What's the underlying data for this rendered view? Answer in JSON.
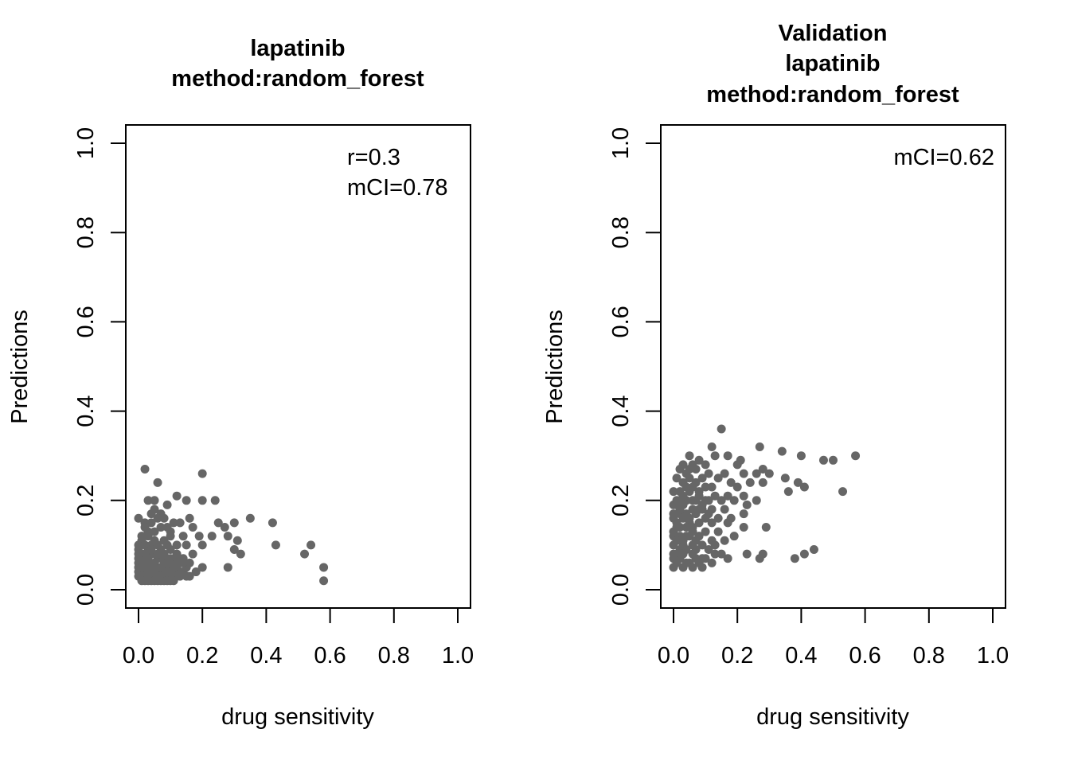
{
  "chart_data": [
    {
      "type": "scatter",
      "title": [
        "lapatinib",
        "method:random_forest"
      ],
      "xlabel": "drug sensitivity",
      "ylabel": "Predictions",
      "xlim": [
        0,
        1
      ],
      "ylim": [
        0,
        1
      ],
      "xticks": [
        "0.0",
        "0.2",
        "0.4",
        "0.6",
        "0.8",
        "1.0"
      ],
      "yticks": [
        "0.0",
        "0.2",
        "0.4",
        "0.6",
        "0.8",
        "1.0"
      ],
      "annotations": [
        "r=0.3",
        "mCI=0.78"
      ],
      "grid": false,
      "point_color": "#666666",
      "points": [
        [
          0.02,
          0.27
        ],
        [
          0.2,
          0.26
        ],
        [
          0.06,
          0.24
        ],
        [
          0.12,
          0.21
        ],
        [
          0.03,
          0.2
        ],
        [
          0.05,
          0.2
        ],
        [
          0.15,
          0.2
        ],
        [
          0.2,
          0.2
        ],
        [
          0.24,
          0.2
        ],
        [
          0.09,
          0.19
        ],
        [
          0.05,
          0.18
        ],
        [
          0.0,
          0.16
        ],
        [
          0.04,
          0.17
        ],
        [
          0.07,
          0.17
        ],
        [
          0.16,
          0.16
        ],
        [
          0.35,
          0.16
        ],
        [
          0.08,
          0.16
        ],
        [
          0.11,
          0.15
        ],
        [
          0.13,
          0.15
        ],
        [
          0.25,
          0.15
        ],
        [
          0.42,
          0.15
        ],
        [
          0.02,
          0.15
        ],
        [
          0.27,
          0.14
        ],
        [
          0.3,
          0.15
        ],
        [
          0.17,
          0.14
        ],
        [
          0.03,
          0.13
        ],
        [
          0.1,
          0.13
        ],
        [
          0.14,
          0.12
        ],
        [
          0.19,
          0.12
        ],
        [
          0.23,
          0.12
        ],
        [
          0.28,
          0.12
        ],
        [
          0.31,
          0.11
        ],
        [
          0.01,
          0.11
        ],
        [
          0.05,
          0.11
        ],
        [
          0.09,
          0.1
        ],
        [
          0.15,
          0.1
        ],
        [
          0.2,
          0.1
        ],
        [
          0.43,
          0.1
        ],
        [
          0.54,
          0.1
        ],
        [
          0.3,
          0.09
        ],
        [
          0.0,
          0.09
        ],
        [
          0.03,
          0.09
        ],
        [
          0.07,
          0.09
        ],
        [
          0.12,
          0.08
        ],
        [
          0.17,
          0.08
        ],
        [
          0.32,
          0.08
        ],
        [
          0.52,
          0.08
        ],
        [
          0.01,
          0.08
        ],
        [
          0.04,
          0.08
        ],
        [
          0.06,
          0.07
        ],
        [
          0.1,
          0.07
        ],
        [
          0.14,
          0.07
        ],
        [
          0.0,
          0.07
        ],
        [
          0.02,
          0.07
        ],
        [
          0.05,
          0.06
        ],
        [
          0.08,
          0.06
        ],
        [
          0.11,
          0.06
        ],
        [
          0.13,
          0.06
        ],
        [
          0.16,
          0.06
        ],
        [
          0.01,
          0.06
        ],
        [
          0.03,
          0.06
        ],
        [
          0.06,
          0.05
        ],
        [
          0.09,
          0.05
        ],
        [
          0.12,
          0.05
        ],
        [
          0.2,
          0.05
        ],
        [
          0.28,
          0.05
        ],
        [
          0.58,
          0.05
        ],
        [
          0.0,
          0.05
        ],
        [
          0.02,
          0.05
        ],
        [
          0.04,
          0.05
        ],
        [
          0.07,
          0.04
        ],
        [
          0.1,
          0.04
        ],
        [
          0.14,
          0.04
        ],
        [
          0.18,
          0.04
        ],
        [
          0.01,
          0.04
        ],
        [
          0.03,
          0.04
        ],
        [
          0.05,
          0.04
        ],
        [
          0.08,
          0.04
        ],
        [
          0.11,
          0.04
        ],
        [
          0.0,
          0.04
        ],
        [
          0.02,
          0.03
        ],
        [
          0.04,
          0.03
        ],
        [
          0.06,
          0.03
        ],
        [
          0.09,
          0.03
        ],
        [
          0.12,
          0.03
        ],
        [
          0.15,
          0.03
        ],
        [
          0.01,
          0.03
        ],
        [
          0.03,
          0.03
        ],
        [
          0.05,
          0.03
        ],
        [
          0.07,
          0.03
        ],
        [
          0.1,
          0.03
        ],
        [
          0.16,
          0.03
        ],
        [
          0.0,
          0.03
        ],
        [
          0.02,
          0.02
        ],
        [
          0.04,
          0.02
        ],
        [
          0.06,
          0.02
        ],
        [
          0.08,
          0.02
        ],
        [
          0.11,
          0.02
        ],
        [
          0.58,
          0.02
        ],
        [
          0.01,
          0.02
        ],
        [
          0.03,
          0.02
        ],
        [
          0.05,
          0.02
        ],
        [
          0.07,
          0.02
        ],
        [
          0.09,
          0.02
        ],
        [
          0.0,
          0.1
        ],
        [
          0.02,
          0.1
        ],
        [
          0.04,
          0.1
        ],
        [
          0.06,
          0.1
        ],
        [
          0.08,
          0.11
        ],
        [
          0.1,
          0.12
        ],
        [
          0.01,
          0.12
        ],
        [
          0.03,
          0.12
        ],
        [
          0.05,
          0.13
        ],
        [
          0.07,
          0.14
        ],
        [
          0.09,
          0.14
        ],
        [
          0.02,
          0.14
        ],
        [
          0.04,
          0.15
        ],
        [
          0.06,
          0.16
        ],
        [
          0.08,
          0.08
        ],
        [
          0.1,
          0.09
        ],
        [
          0.12,
          0.1
        ],
        [
          0.13,
          0.04
        ],
        [
          0.15,
          0.05
        ],
        [
          0.0,
          0.06
        ],
        [
          0.02,
          0.08
        ],
        [
          0.04,
          0.09
        ],
        [
          0.06,
          0.08
        ],
        [
          0.08,
          0.07
        ],
        [
          0.09,
          0.06
        ],
        [
          0.11,
          0.05
        ],
        [
          0.13,
          0.03
        ],
        [
          0.14,
          0.06
        ],
        [
          0.0,
          0.08
        ],
        [
          0.01,
          0.05
        ],
        [
          0.03,
          0.07
        ],
        [
          0.05,
          0.06
        ],
        [
          0.07,
          0.05
        ],
        [
          0.09,
          0.04
        ],
        [
          0.1,
          0.02
        ],
        [
          0.12,
          0.07
        ]
      ]
    },
    {
      "type": "scatter",
      "title": [
        "Validation",
        "lapatinib",
        "method:random_forest"
      ],
      "xlabel": "drug sensitivity",
      "ylabel": "Predictions",
      "xlim": [
        0,
        1
      ],
      "ylim": [
        0,
        1
      ],
      "xticks": [
        "0.0",
        "0.2",
        "0.4",
        "0.6",
        "0.8",
        "1.0"
      ],
      "yticks": [
        "0.0",
        "0.2",
        "0.4",
        "0.6",
        "0.8",
        "1.0"
      ],
      "annotations": [
        "mCI=0.62"
      ],
      "grid": false,
      "point_color": "#666666",
      "points": [
        [
          0.15,
          0.36
        ],
        [
          0.12,
          0.32
        ],
        [
          0.27,
          0.32
        ],
        [
          0.34,
          0.31
        ],
        [
          0.57,
          0.3
        ],
        [
          0.47,
          0.29
        ],
        [
          0.5,
          0.29
        ],
        [
          0.4,
          0.3
        ],
        [
          0.17,
          0.3
        ],
        [
          0.05,
          0.3
        ],
        [
          0.08,
          0.29
        ],
        [
          0.13,
          0.3
        ],
        [
          0.21,
          0.29
        ],
        [
          0.03,
          0.28
        ],
        [
          0.06,
          0.28
        ],
        [
          0.1,
          0.28
        ],
        [
          0.2,
          0.28
        ],
        [
          0.28,
          0.27
        ],
        [
          0.02,
          0.27
        ],
        [
          0.04,
          0.26
        ],
        [
          0.07,
          0.27
        ],
        [
          0.11,
          0.26
        ],
        [
          0.16,
          0.26
        ],
        [
          0.22,
          0.26
        ],
        [
          0.26,
          0.26
        ],
        [
          0.3,
          0.26
        ],
        [
          0.35,
          0.25
        ],
        [
          0.01,
          0.25
        ],
        [
          0.05,
          0.25
        ],
        [
          0.09,
          0.25
        ],
        [
          0.14,
          0.25
        ],
        [
          0.18,
          0.24
        ],
        [
          0.24,
          0.24
        ],
        [
          0.28,
          0.24
        ],
        [
          0.39,
          0.24
        ],
        [
          0.03,
          0.24
        ],
        [
          0.06,
          0.23
        ],
        [
          0.1,
          0.23
        ],
        [
          0.12,
          0.23
        ],
        [
          0.2,
          0.23
        ],
        [
          0.36,
          0.22
        ],
        [
          0.41,
          0.23
        ],
        [
          0.53,
          0.22
        ],
        [
          0.0,
          0.22
        ],
        [
          0.02,
          0.22
        ],
        [
          0.05,
          0.22
        ],
        [
          0.08,
          0.21
        ],
        [
          0.13,
          0.21
        ],
        [
          0.17,
          0.21
        ],
        [
          0.22,
          0.21
        ],
        [
          0.26,
          0.2
        ],
        [
          0.01,
          0.2
        ],
        [
          0.04,
          0.2
        ],
        [
          0.07,
          0.2
        ],
        [
          0.1,
          0.2
        ],
        [
          0.15,
          0.2
        ],
        [
          0.19,
          0.2
        ],
        [
          0.23,
          0.19
        ],
        [
          0.0,
          0.19
        ],
        [
          0.03,
          0.19
        ],
        [
          0.06,
          0.18
        ],
        [
          0.09,
          0.18
        ],
        [
          0.12,
          0.18
        ],
        [
          0.16,
          0.18
        ],
        [
          0.22,
          0.17
        ],
        [
          0.02,
          0.17
        ],
        [
          0.04,
          0.17
        ],
        [
          0.07,
          0.17
        ],
        [
          0.11,
          0.17
        ],
        [
          0.14,
          0.16
        ],
        [
          0.18,
          0.16
        ],
        [
          0.0,
          0.16
        ],
        [
          0.03,
          0.16
        ],
        [
          0.05,
          0.15
        ],
        [
          0.08,
          0.15
        ],
        [
          0.12,
          0.15
        ],
        [
          0.17,
          0.15
        ],
        [
          0.22,
          0.14
        ],
        [
          0.29,
          0.14
        ],
        [
          0.01,
          0.14
        ],
        [
          0.04,
          0.14
        ],
        [
          0.06,
          0.13
        ],
        [
          0.1,
          0.13
        ],
        [
          0.14,
          0.13
        ],
        [
          0.19,
          0.12
        ],
        [
          0.0,
          0.13
        ],
        [
          0.02,
          0.12
        ],
        [
          0.05,
          0.12
        ],
        [
          0.08,
          0.12
        ],
        [
          0.12,
          0.11
        ],
        [
          0.16,
          0.11
        ],
        [
          0.03,
          0.11
        ],
        [
          0.06,
          0.1
        ],
        [
          0.09,
          0.1
        ],
        [
          0.13,
          0.1
        ],
        [
          0.0,
          0.1
        ],
        [
          0.02,
          0.09
        ],
        [
          0.04,
          0.09
        ],
        [
          0.07,
          0.09
        ],
        [
          0.11,
          0.09
        ],
        [
          0.15,
          0.08
        ],
        [
          0.44,
          0.09
        ],
        [
          0.01,
          0.08
        ],
        [
          0.03,
          0.08
        ],
        [
          0.06,
          0.08
        ],
        [
          0.09,
          0.07
        ],
        [
          0.13,
          0.08
        ],
        [
          0.17,
          0.07
        ],
        [
          0.23,
          0.08
        ],
        [
          0.27,
          0.07
        ],
        [
          0.28,
          0.08
        ],
        [
          0.38,
          0.07
        ],
        [
          0.41,
          0.08
        ],
        [
          0.0,
          0.07
        ],
        [
          0.02,
          0.07
        ],
        [
          0.05,
          0.06
        ],
        [
          0.08,
          0.06
        ],
        [
          0.12,
          0.06
        ],
        [
          0.0,
          0.05
        ],
        [
          0.03,
          0.05
        ],
        [
          0.06,
          0.05
        ],
        [
          0.09,
          0.05
        ],
        [
          0.01,
          0.06
        ],
        [
          0.04,
          0.06
        ],
        [
          0.07,
          0.07
        ],
        [
          0.1,
          0.07
        ],
        [
          0.0,
          0.12
        ],
        [
          0.01,
          0.15
        ],
        [
          0.02,
          0.18
        ],
        [
          0.03,
          0.21
        ],
        [
          0.04,
          0.23
        ],
        [
          0.05,
          0.27
        ],
        [
          0.06,
          0.2
        ],
        [
          0.07,
          0.24
        ],
        [
          0.08,
          0.22
        ],
        [
          0.09,
          0.19
        ],
        [
          0.1,
          0.16
        ],
        [
          0.11,
          0.2
        ],
        [
          0.0,
          0.17
        ],
        [
          0.01,
          0.19
        ],
        [
          0.02,
          0.14
        ],
        [
          0.03,
          0.1
        ],
        [
          0.04,
          0.12
        ],
        [
          0.05,
          0.16
        ],
        [
          0.06,
          0.14
        ],
        [
          0.07,
          0.11
        ],
        [
          0.08,
          0.18
        ],
        [
          0.0,
          0.08
        ],
        [
          0.01,
          0.11
        ],
        [
          0.02,
          0.2
        ]
      ]
    }
  ]
}
